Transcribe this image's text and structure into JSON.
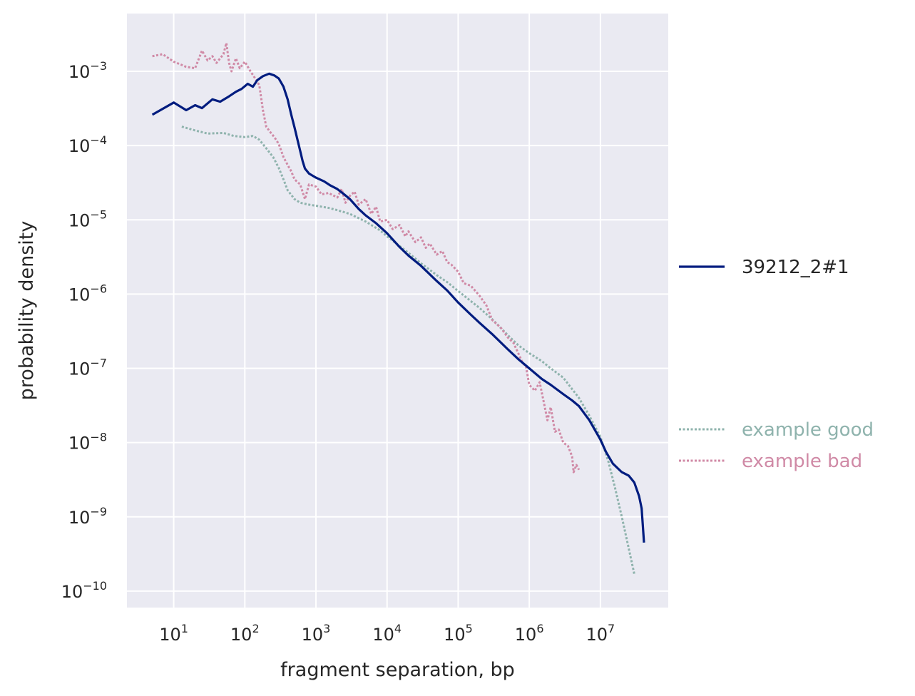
{
  "chart_data": {
    "type": "line",
    "xlabel": "fragment separation, bp",
    "ylabel": "probability density",
    "x_scale": "log",
    "y_scale": "log",
    "xlim": [
      2.2,
      90000000
    ],
    "ylim": [
      6e-11,
      0.006
    ],
    "x_ticks": [
      {
        "value": 10,
        "base": "10",
        "exp": "1"
      },
      {
        "value": 100,
        "base": "10",
        "exp": "2"
      },
      {
        "value": 1000,
        "base": "10",
        "exp": "3"
      },
      {
        "value": 10000,
        "base": "10",
        "exp": "4"
      },
      {
        "value": 100000,
        "base": "10",
        "exp": "5"
      },
      {
        "value": 1000000,
        "base": "10",
        "exp": "6"
      },
      {
        "value": 10000000,
        "base": "10",
        "exp": "7"
      }
    ],
    "y_ticks": [
      {
        "value": 0.001,
        "base": "10",
        "exp": "−3"
      },
      {
        "value": 0.0001,
        "base": "10",
        "exp": "−4"
      },
      {
        "value": 1e-05,
        "base": "10",
        "exp": "−5"
      },
      {
        "value": 1e-06,
        "base": "10",
        "exp": "−6"
      },
      {
        "value": 1e-07,
        "base": "10",
        "exp": "−7"
      },
      {
        "value": 1e-08,
        "base": "10",
        "exp": "−8"
      },
      {
        "value": 1e-09,
        "base": "10",
        "exp": "−9"
      },
      {
        "value": 1e-10,
        "base": "10",
        "exp": "−10"
      }
    ],
    "grid": true,
    "background": "#eaeaf2",
    "legend_placement": "right",
    "series": [
      {
        "name": "39212_2#1",
        "color": "#001c7f",
        "style": "solid",
        "points": [
          [
            5,
            0.00026
          ],
          [
            10,
            0.00038
          ],
          [
            15,
            0.0003
          ],
          [
            20,
            0.00035
          ],
          [
            25,
            0.00032
          ],
          [
            35,
            0.00042
          ],
          [
            45,
            0.00039
          ],
          [
            60,
            0.00046
          ],
          [
            75,
            0.00053
          ],
          [
            90,
            0.00058
          ],
          [
            110,
            0.00068
          ],
          [
            130,
            0.00062
          ],
          [
            150,
            0.00076
          ],
          [
            180,
            0.00086
          ],
          [
            220,
            0.00093
          ],
          [
            260,
            0.00088
          ],
          [
            300,
            0.0008
          ],
          [
            350,
            0.00062
          ],
          [
            400,
            0.00042
          ],
          [
            450,
            0.00026
          ],
          [
            500,
            0.000175
          ],
          [
            550,
            0.00012
          ],
          [
            600,
            8.5e-05
          ],
          [
            650,
            6.2e-05
          ],
          [
            700,
            4.9e-05
          ],
          [
            800,
            4.2e-05
          ],
          [
            1000,
            3.7e-05
          ],
          [
            1300,
            3.3e-05
          ],
          [
            1600,
            2.9e-05
          ],
          [
            2000,
            2.6e-05
          ],
          [
            2500,
            2.2e-05
          ],
          [
            3000,
            1.9e-05
          ],
          [
            4000,
            1.4e-05
          ],
          [
            5000,
            1.15e-05
          ],
          [
            7000,
            9e-06
          ],
          [
            10000,
            6.6e-06
          ],
          [
            15000,
            4.3e-06
          ],
          [
            20000,
            3.3e-06
          ],
          [
            30000,
            2.4e-06
          ],
          [
            50000,
            1.5e-06
          ],
          [
            70000,
            1.12e-06
          ],
          [
            100000,
            7.7e-07
          ],
          [
            150000,
            5.3e-07
          ],
          [
            200000,
            4.1e-07
          ],
          [
            300000,
            2.9e-07
          ],
          [
            500000,
            1.8e-07
          ],
          [
            700000,
            1.33e-07
          ],
          [
            1000000,
            1e-07
          ],
          [
            1500000,
            7.2e-08
          ],
          [
            2000000,
            6e-08
          ],
          [
            3000000,
            4.5e-08
          ],
          [
            4000000,
            3.7e-08
          ],
          [
            5000000,
            3.1e-08
          ],
          [
            7000000,
            2e-08
          ],
          [
            10000000,
            1.1e-08
          ],
          [
            12000000,
            7.5e-09
          ],
          [
            15000000,
            5.2e-09
          ],
          [
            20000000,
            4e-09
          ],
          [
            25000000,
            3.6e-09
          ],
          [
            30000000,
            2.9e-09
          ],
          [
            35000000,
            1.9e-09
          ],
          [
            38000000,
            1.3e-09
          ],
          [
            41000000,
            4.5e-10
          ]
        ]
      },
      {
        "name": "example good",
        "color": "#8fb3ad",
        "style": "dotted",
        "points": [
          [
            13,
            0.00018
          ],
          [
            20,
            0.00016
          ],
          [
            30,
            0.000145
          ],
          [
            50,
            0.000148
          ],
          [
            70,
            0.000135
          ],
          [
            100,
            0.00013
          ],
          [
            130,
            0.000135
          ],
          [
            160,
            0.00012
          ],
          [
            200,
            9.2e-05
          ],
          [
            250,
            7e-05
          ],
          [
            300,
            5e-05
          ],
          [
            350,
            3.5e-05
          ],
          [
            400,
            2.5e-05
          ],
          [
            500,
            1.9e-05
          ],
          [
            600,
            1.7e-05
          ],
          [
            800,
            1.6e-05
          ],
          [
            1000,
            1.55e-05
          ],
          [
            1500,
            1.45e-05
          ],
          [
            2000,
            1.35e-05
          ],
          [
            3000,
            1.2e-05
          ],
          [
            5000,
            9.5e-06
          ],
          [
            8000,
            7.2e-06
          ],
          [
            10000,
            6e-06
          ],
          [
            20000,
            3.6e-06
          ],
          [
            30000,
            2.6e-06
          ],
          [
            50000,
            1.8e-06
          ],
          [
            70000,
            1.45e-06
          ],
          [
            100000,
            1.1e-06
          ],
          [
            200000,
            6.5e-07
          ],
          [
            300000,
            4.6e-07
          ],
          [
            500000,
            2.8e-07
          ],
          [
            700000,
            2.05e-07
          ],
          [
            1000000,
            1.6e-07
          ],
          [
            1500000,
            1.25e-07
          ],
          [
            2000000,
            1e-07
          ],
          [
            3000000,
            7.5e-08
          ],
          [
            5000000,
            4e-08
          ],
          [
            7000000,
            2.3e-08
          ],
          [
            10000000,
            1.2e-08
          ],
          [
            13000000,
            5.5e-09
          ],
          [
            16000000,
            2.5e-09
          ],
          [
            20000000,
            1e-09
          ],
          [
            25000000,
            3.8e-10
          ],
          [
            30000000,
            1.7e-10
          ]
        ]
      },
      {
        "name": "example bad",
        "color": "#d08aa6",
        "style": "dotted",
        "points": [
          [
            5,
            0.0016
          ],
          [
            7,
            0.0017
          ],
          [
            10,
            0.00135
          ],
          [
            15,
            0.00115
          ],
          [
            20,
            0.0011
          ],
          [
            25,
            0.0019
          ],
          [
            30,
            0.0014
          ],
          [
            35,
            0.0016
          ],
          [
            40,
            0.0013
          ],
          [
            50,
            0.0017
          ],
          [
            55,
            0.0024
          ],
          [
            60,
            0.0013
          ],
          [
            65,
            0.001
          ],
          [
            75,
            0.0015
          ],
          [
            85,
            0.0011
          ],
          [
            100,
            0.00135
          ],
          [
            120,
            0.001
          ],
          [
            140,
            0.0008
          ],
          [
            160,
            0.00065
          ],
          [
            180,
            0.0003
          ],
          [
            200,
            0.00018
          ],
          [
            230,
            0.00015
          ],
          [
            260,
            0.00013
          ],
          [
            300,
            0.000105
          ],
          [
            350,
            7e-05
          ],
          [
            400,
            5.5e-05
          ],
          [
            450,
            4.5e-05
          ],
          [
            500,
            3.5e-05
          ],
          [
            600,
            3e-05
          ],
          [
            700,
            1.9e-05
          ],
          [
            800,
            3e-05
          ],
          [
            1000,
            2.8e-05
          ],
          [
            1200,
            2.2e-05
          ],
          [
            1500,
            2.3e-05
          ],
          [
            2000,
            2e-05
          ],
          [
            2300,
            2.6e-05
          ],
          [
            2600,
            1.7e-05
          ],
          [
            3000,
            2.1e-05
          ],
          [
            3500,
            2.4e-05
          ],
          [
            4000,
            1.6e-05
          ],
          [
            5000,
            1.9e-05
          ],
          [
            6000,
            1.2e-05
          ],
          [
            7000,
            1.5e-05
          ],
          [
            8000,
            9.5e-06
          ],
          [
            10000,
            1e-05
          ],
          [
            12000,
            7.5e-06
          ],
          [
            15000,
            8.5e-06
          ],
          [
            18000,
            6e-06
          ],
          [
            20000,
            7e-06
          ],
          [
            25000,
            5e-06
          ],
          [
            30000,
            5.8e-06
          ],
          [
            35000,
            4.2e-06
          ],
          [
            40000,
            4.8e-06
          ],
          [
            50000,
            3.4e-06
          ],
          [
            60000,
            3.8e-06
          ],
          [
            70000,
            2.7e-06
          ],
          [
            80000,
            2.5e-06
          ],
          [
            100000,
            2e-06
          ],
          [
            120000,
            1.4e-06
          ],
          [
            150000,
            1.3e-06
          ],
          [
            200000,
            9.5e-07
          ],
          [
            250000,
            7e-07
          ],
          [
            300000,
            4.5e-07
          ],
          [
            400000,
            3.5e-07
          ],
          [
            500000,
            2.6e-07
          ],
          [
            600000,
            2.2e-07
          ],
          [
            700000,
            1.6e-07
          ],
          [
            800000,
            1.2e-07
          ],
          [
            900000,
            1.05e-07
          ],
          [
            1000000,
            6e-08
          ],
          [
            1200000,
            5e-08
          ],
          [
            1400000,
            6.5e-08
          ],
          [
            1600000,
            3.5e-08
          ],
          [
            1800000,
            2e-08
          ],
          [
            2000000,
            3e-08
          ],
          [
            2300000,
            1.4e-08
          ],
          [
            2600000,
            1.5e-08
          ],
          [
            3000000,
            1e-08
          ],
          [
            3500000,
            9e-09
          ],
          [
            4000000,
            6.5e-09
          ],
          [
            4200000,
            4e-09
          ],
          [
            4600000,
            5e-09
          ],
          [
            5000000,
            4.3e-09
          ]
        ]
      }
    ]
  }
}
